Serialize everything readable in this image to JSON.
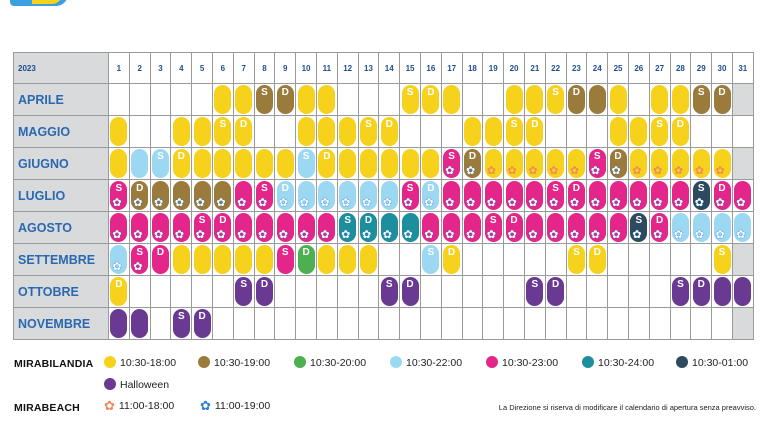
{
  "year": "2023",
  "days": [
    "1",
    "2",
    "3",
    "4",
    "5",
    "6",
    "7",
    "8",
    "9",
    "10",
    "11",
    "12",
    "13",
    "14",
    "15",
    "16",
    "17",
    "18",
    "19",
    "20",
    "21",
    "22",
    "23",
    "24",
    "25",
    "26",
    "27",
    "28",
    "29",
    "30",
    "31"
  ],
  "colors": {
    "Y": "#f7d21c",
    "B": "#9a7b3c",
    "G": "#4caf50",
    "L": "#9dd8f3",
    "P": "#e4268a",
    "T": "#1d8e9c",
    "N": "#2d4a5e",
    "V": "#6a3a93"
  },
  "months": [
    {
      "name": "APRILE",
      "days": [
        ".",
        ".",
        ".",
        ".",
        ".",
        "Y",
        "Y",
        "B:S",
        "B:D",
        "Y",
        "Y",
        ".",
        ".",
        ".",
        "Y:S",
        "Y:D",
        "Y",
        ".",
        ".",
        "Y",
        "Y",
        "Y:S",
        "B:D",
        "B",
        "Y",
        ".",
        "Y",
        "Y",
        "B:S",
        "B:D",
        "x"
      ]
    },
    {
      "name": "MAGGIO",
      "days": [
        "Y",
        ".",
        ".",
        "Y",
        "Y",
        "Y:S",
        "Y:D",
        ".",
        ".",
        "Y",
        "Y",
        "Y",
        "Y:S",
        "Y:D",
        ".",
        ".",
        ".",
        "Y",
        "Y",
        "Y:S",
        "Y:D",
        ".",
        ".",
        ".",
        "Y",
        "Y",
        "Y:S",
        "Y:D",
        ".",
        ".",
        "."
      ]
    },
    {
      "name": "GIUGNO",
      "days": [
        "Y",
        "L",
        "L:S",
        "Y:D",
        "Y",
        "Y",
        "Y",
        "Y",
        "Y",
        "L:S",
        "Y:D",
        "Y",
        "Y",
        "Y",
        "Y",
        "Y",
        "P:S:b",
        "B:D:b",
        "Y::p",
        "Y::p",
        "Y::p",
        "Y::p",
        "Y::p",
        "P:S:b",
        "B:D:b",
        "Y::p",
        "Y::p",
        "Y::p",
        "Y::p",
        "Y::p",
        "x"
      ]
    },
    {
      "name": "LUGLIO",
      "days": [
        "P:S:b",
        "B:D:b",
        "B::b",
        "B::b",
        "B::b",
        "B::b",
        "P::b",
        "P:S:b",
        "L:D:b",
        "L::b",
        "L::b",
        "L::b",
        "L::b",
        "L::b",
        "P:S:b",
        "L:D:b",
        "P::b",
        "P::b",
        "P::b",
        "P::b",
        "P::b",
        "P:S:b",
        "P:D:b",
        "P::b",
        "P::b",
        "P::b",
        "P::b",
        "P::b",
        "N:S:b",
        "P:D:b",
        "P::b"
      ]
    },
    {
      "name": "AGOSTO",
      "days": [
        "P::b",
        "P::b",
        "P::b",
        "P::b",
        "P:S:b",
        "P:D:b",
        "P::b",
        "P::b",
        "P::b",
        "P::b",
        "P::b",
        "T:S:b",
        "T:D:b",
        "T::b",
        "T::b",
        "P::b",
        "P::b",
        "P::b",
        "P:S:b",
        "P:D:b",
        "P::b",
        "P::b",
        "P::b",
        "P::b",
        "P::b",
        "N:S:b",
        "P:D:b",
        "L::b",
        "L::b",
        "L::b",
        "L::b"
      ]
    },
    {
      "name": "SETTEMBRE",
      "days": [
        "L::b",
        "P:S:b",
        "P:D",
        "Y",
        "Y",
        "Y",
        "Y",
        "Y",
        "P:S",
        "G:D",
        "Y",
        "Y",
        "Y",
        ".",
        ".",
        "L:S",
        "Y:D",
        ".",
        ".",
        ".",
        ".",
        ".",
        "Y:S",
        "Y:D",
        ".",
        ".",
        ".",
        ".",
        ".",
        "Y:S",
        "x"
      ]
    },
    {
      "name": "OTTOBRE",
      "days": [
        "Y:D",
        ".",
        ".",
        ".",
        ".",
        ".",
        "V:S",
        "V:D",
        ".",
        ".",
        ".",
        ".",
        ".",
        "V:S",
        "V:D",
        ".",
        ".",
        ".",
        ".",
        ".",
        "V:S",
        "V:D",
        ".",
        ".",
        ".",
        ".",
        ".",
        "V:S",
        "V:D",
        "V",
        "V"
      ]
    },
    {
      "name": "NOVEMBRE",
      "days": [
        "V",
        "V",
        ".",
        "V:S",
        "V:D",
        ".",
        ".",
        ".",
        ".",
        ".",
        ".",
        ".",
        ".",
        ".",
        ".",
        ".",
        ".",
        ".",
        ".",
        ".",
        ".",
        ".",
        ".",
        ".",
        ".",
        ".",
        ".",
        ".",
        ".",
        ".",
        "x"
      ]
    }
  ],
  "legend": {
    "mirabilandia_title": "MIRABILANDIA",
    "mirabilandia": [
      {
        "color": "#f7d21c",
        "text": "10:30-18:00"
      },
      {
        "color": "#9a7b3c",
        "text": "10:30-19:00"
      },
      {
        "color": "#4caf50",
        "text": "10:30-20:00"
      },
      {
        "color": "#9dd8f3",
        "text": "10:30-22:00"
      },
      {
        "color": "#e4268a",
        "text": "10:30-23:00"
      },
      {
        "color": "#1d8e9c",
        "text": "10:30-24:00"
      },
      {
        "color": "#2d4a5e",
        "text": "10:30-01:00"
      },
      {
        "color": "#6a3a93",
        "text": "Halloween"
      }
    ],
    "mirabeach_title": "MIRABEACH",
    "mirabeach": [
      {
        "icon": "flower-orange-icon",
        "color": "#f08a5d",
        "text": "11:00-18:00"
      },
      {
        "icon": "flower-blue-icon",
        "color": "#2d7fd1",
        "text": "11:00-19:00"
      }
    ]
  },
  "note": "La Direzione si riserva di modificare il calendario di apertura senza preavviso."
}
